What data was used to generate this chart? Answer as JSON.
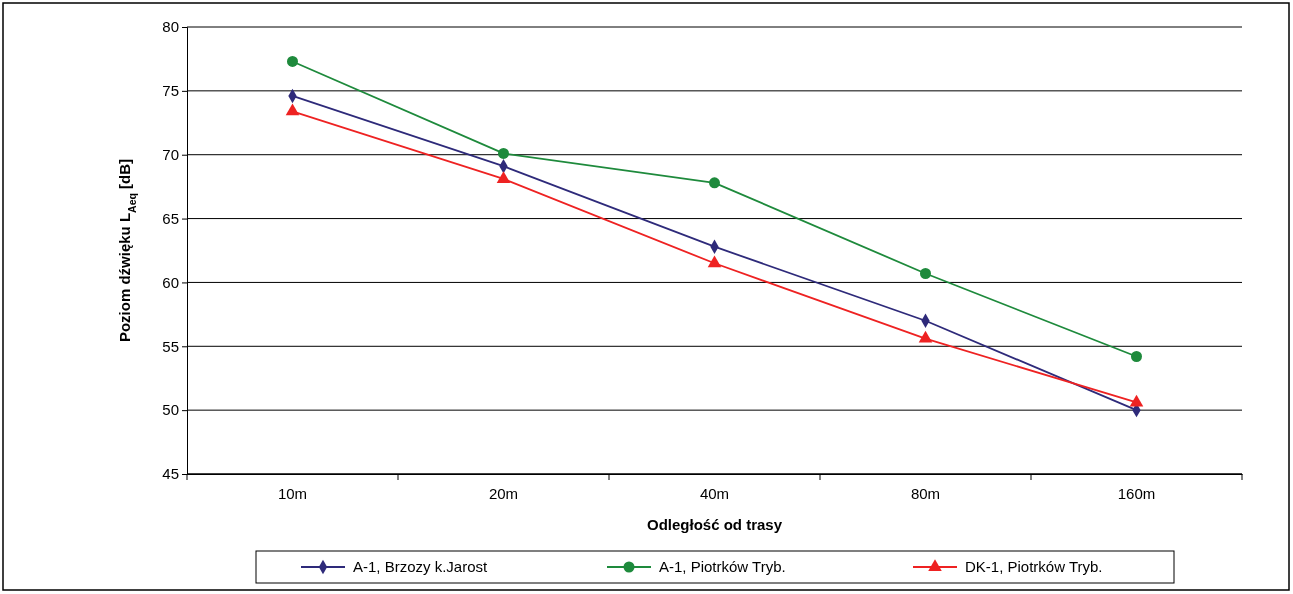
{
  "chart_data": {
    "type": "line",
    "xlabel": "Odległość od trasy",
    "ylabel": "Poziom  dźwięku  L$_{Aeq}$ [dB]",
    "categories": [
      "10m",
      "20m",
      "40m",
      "80m",
      "160m"
    ],
    "ylim": [
      45,
      80
    ],
    "yticks": [
      45,
      50,
      55,
      60,
      65,
      70,
      75,
      80
    ],
    "grid": "y",
    "legend": "bottom",
    "series": [
      {
        "name": "A-1, Brzozy k.Jarost",
        "color": "#2e2a7a",
        "marker": "diamond",
        "values": [
          74.6,
          69.1,
          62.8,
          57.0,
          50.0
        ]
      },
      {
        "name": "A-1, Piotrków Tryb.",
        "color": "#1e8a3c",
        "marker": "circle",
        "values": [
          77.3,
          70.1,
          67.8,
          60.7,
          54.2
        ]
      },
      {
        "name": "DK-1, Piotrków Tryb.",
        "color": "#ee2222",
        "marker": "triangle",
        "values": [
          73.4,
          68.1,
          61.5,
          55.6,
          50.6
        ]
      }
    ]
  }
}
